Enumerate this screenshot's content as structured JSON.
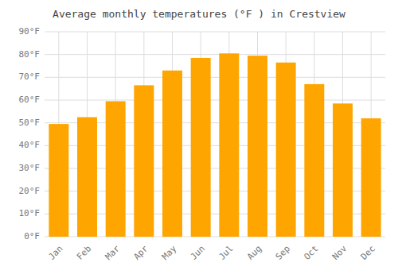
{
  "chart_data": {
    "type": "bar",
    "title": "Average monthly temperatures (°F ) in Crestview",
    "categories": [
      "Jan",
      "Feb",
      "Mar",
      "Apr",
      "May",
      "Jun",
      "Jul",
      "Aug",
      "Sep",
      "Oct",
      "Nov",
      "Dec"
    ],
    "values": [
      49.5,
      52.5,
      59.5,
      66.5,
      73.0,
      78.5,
      80.5,
      79.5,
      76.5,
      67.0,
      58.5,
      52.0
    ],
    "color": "#FFA500",
    "ylim": [
      0,
      90
    ],
    "yticks": [
      {
        "value": 0,
        "label": "0°F"
      },
      {
        "value": 10,
        "label": "10°F"
      },
      {
        "value": 20,
        "label": "20°F"
      },
      {
        "value": 30,
        "label": "30°F"
      },
      {
        "value": 40,
        "label": "40°F"
      },
      {
        "value": 50,
        "label": "50°F"
      },
      {
        "value": 60,
        "label": "60°F"
      },
      {
        "value": 70,
        "label": "70°F"
      },
      {
        "value": 80,
        "label": "80°F"
      },
      {
        "value": 90,
        "label": "90°F"
      }
    ],
    "grid": true
  }
}
